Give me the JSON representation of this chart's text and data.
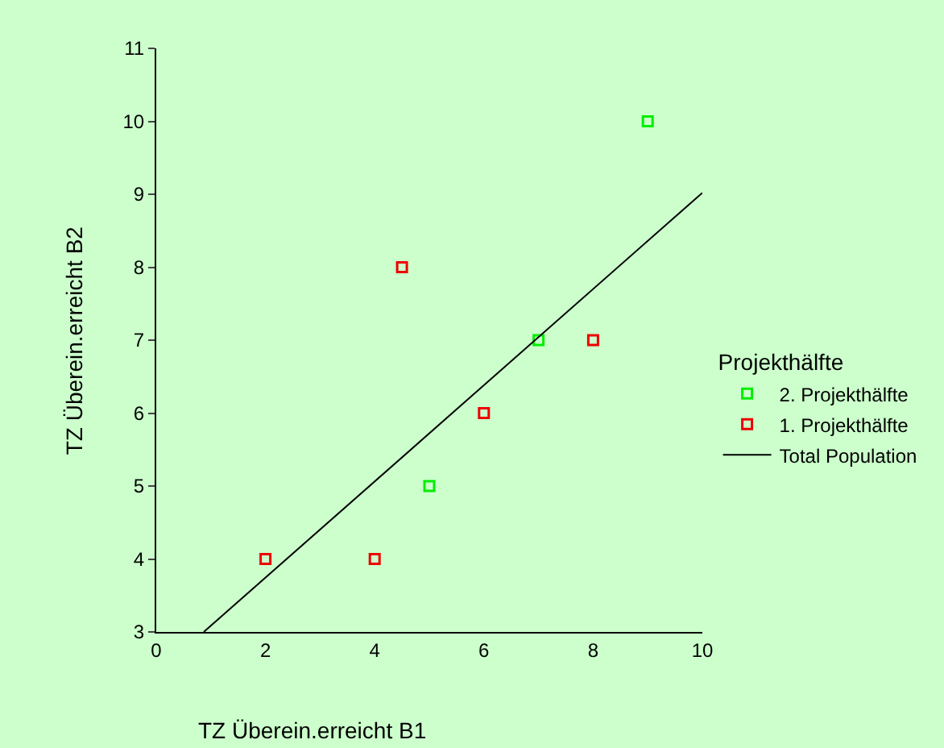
{
  "chart_data": {
    "type": "scatter",
    "xlabel": "TZ Überein.erreicht B1",
    "ylabel": "TZ Überein.erreicht B2",
    "legend_title": "Projekthälfte",
    "xlim": [
      0,
      10
    ],
    "xticks": [
      0,
      2,
      4,
      6,
      8,
      10
    ],
    "ylim": [
      3,
      11
    ],
    "yticks": [
      3,
      4,
      5,
      6,
      7,
      8,
      9,
      10,
      11
    ],
    "grid": false,
    "legend": "right",
    "marker": "square",
    "series": [
      {
        "name": "2. Projekthälfte",
        "color": "#00ee00",
        "x": [
          5,
          7,
          9
        ],
        "values": [
          5,
          7,
          10
        ]
      },
      {
        "name": "1. Projekthälfte",
        "color": "#ee0000",
        "x": [
          2,
          4,
          4.5,
          6,
          8
        ],
        "values": [
          4,
          4,
          8,
          6,
          7
        ]
      },
      {
        "name": "Total Population",
        "type": "line",
        "marker": "none",
        "color": "#000000",
        "x": [
          0.87,
          10
        ],
        "values": [
          3,
          9.02
        ]
      }
    ]
  }
}
